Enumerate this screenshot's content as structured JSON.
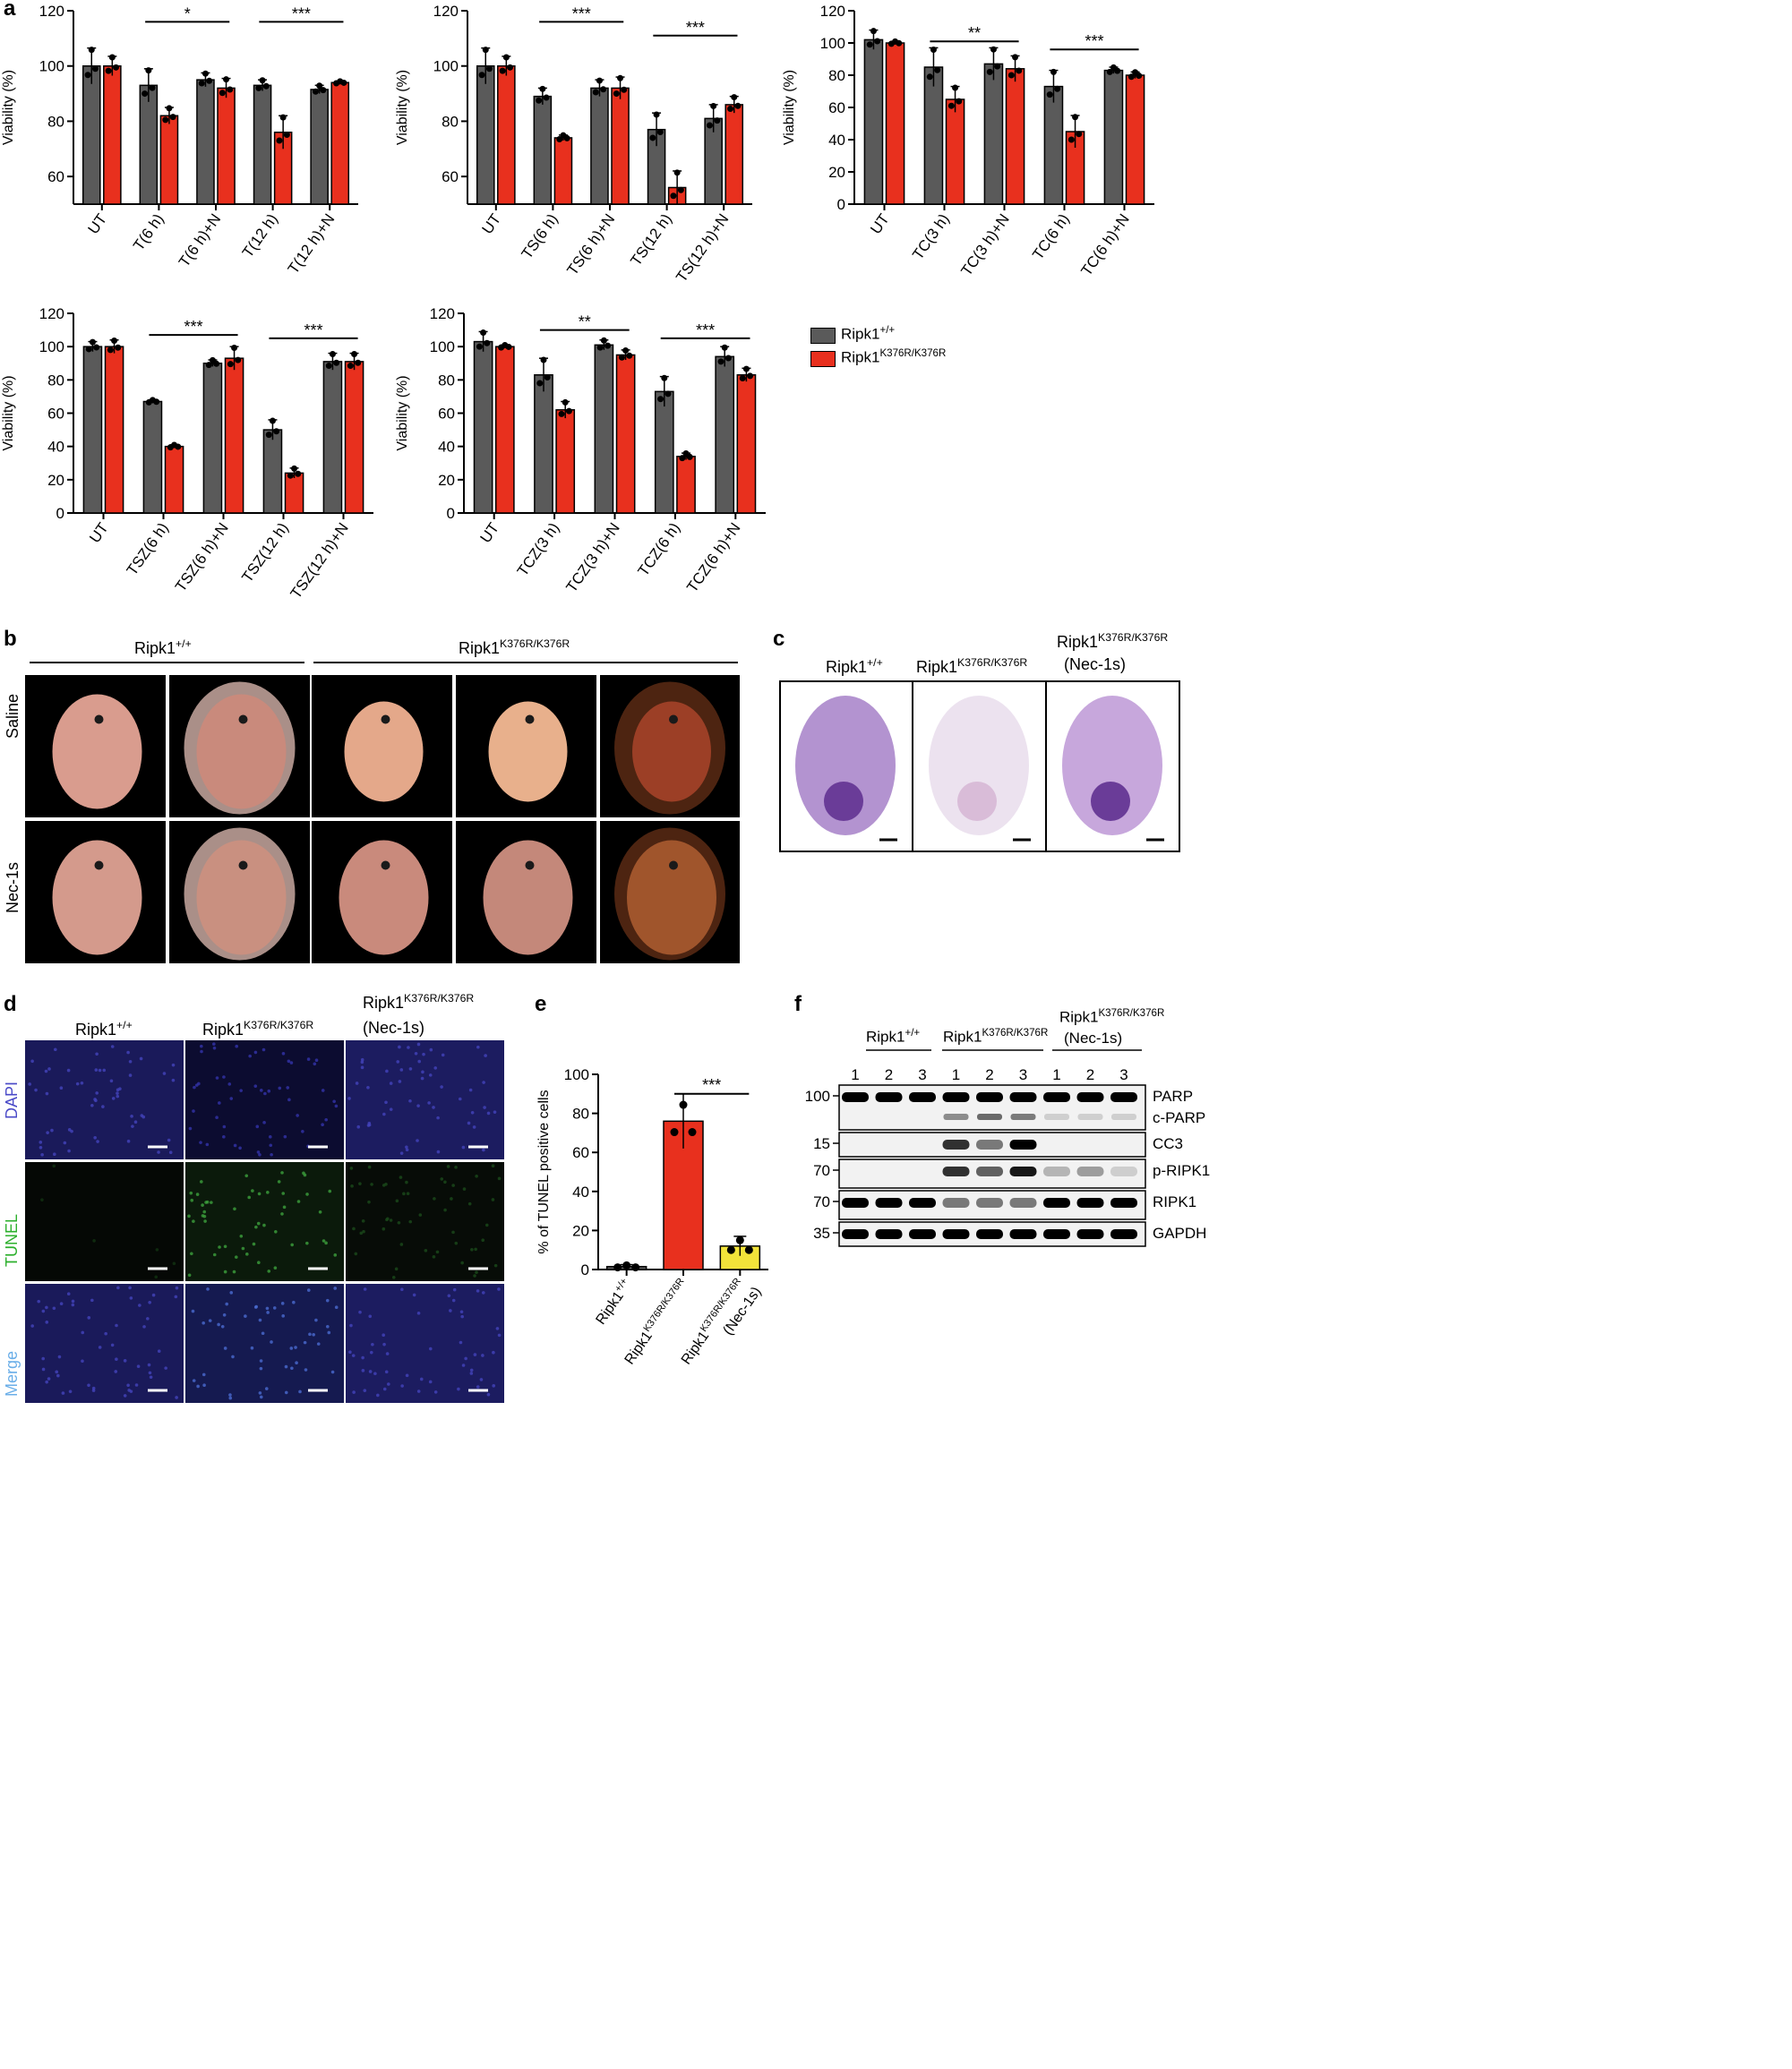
{
  "panels": {
    "a": "a",
    "b": "b",
    "c": "c",
    "d": "d",
    "e": "e",
    "f": "f"
  },
  "colors": {
    "wt": "#5a5a5a",
    "ki": "#e8301e",
    "nec": "#f2e33a"
  },
  "legend": {
    "wt_base": "Ripk1",
    "wt_sup": "+/+",
    "ki_base": "Ripk1",
    "ki_sup": "K376R/K376R"
  },
  "chart_data": [
    {
      "type": "bar",
      "ylabel": "Viability (%)",
      "ylim": [
        50,
        120
      ],
      "yticks": [
        60,
        80,
        100,
        120
      ],
      "categories": [
        "UT",
        "T(6 h)",
        "T(6 h)+N",
        "T(12 h)",
        "T(12 h)+N"
      ],
      "series": [
        {
          "name": "Ripk1+/+",
          "values": [
            100,
            93,
            95,
            93,
            91.5
          ],
          "err": [
            6.5,
            6,
            2.5,
            2,
            1.5
          ]
        },
        {
          "name": "Ripk1K376R/K376R",
          "values": [
            100,
            82,
            92,
            76,
            94
          ],
          "err": [
            3.5,
            3,
            3.5,
            6,
            0.5
          ]
        }
      ],
      "sig": [
        {
          "from": 2,
          "to": 3,
          "y": 116,
          "label": "*"
        },
        {
          "from": 4,
          "to": 5,
          "y": 116,
          "label": "***"
        }
      ]
    },
    {
      "type": "bar",
      "ylabel": "Viability (%)",
      "ylim": [
        50,
        120
      ],
      "yticks": [
        60,
        80,
        100,
        120
      ],
      "categories": [
        "UT",
        "TS(6 h)",
        "TS(6 h)+N",
        "TS(12 h)",
        "TS(12 h)+N"
      ],
      "series": [
        {
          "name": "Ripk1+/+",
          "values": [
            100,
            89,
            92,
            77,
            81
          ],
          "err": [
            6.5,
            3,
            3,
            6,
            5
          ]
        },
        {
          "name": "Ripk1K376R/K376R",
          "values": [
            100,
            74,
            92,
            56,
            86
          ],
          "err": [
            3.5,
            1,
            4,
            6,
            3
          ]
        }
      ],
      "sig": [
        {
          "from": 2,
          "to": 3,
          "y": 116,
          "label": "***"
        },
        {
          "from": 4,
          "to": 5,
          "y": 111,
          "label": "***"
        }
      ]
    },
    {
      "type": "bar",
      "ylabel": "Viability (%)",
      "ylim": [
        0,
        120
      ],
      "yticks": [
        0,
        20,
        40,
        60,
        80,
        100,
        120
      ],
      "categories": [
        "UT",
        "TC(3 h)",
        "TC(3 h)+N",
        "TC(6 h)",
        "TC(6 h)+N"
      ],
      "series": [
        {
          "name": "Ripk1+/+",
          "values": [
            102,
            85,
            87,
            73,
            83
          ],
          "err": [
            6,
            12,
            10,
            10,
            2
          ]
        },
        {
          "name": "Ripk1K376R/K376R",
          "values": [
            100,
            65,
            84,
            45,
            80
          ],
          "err": [
            1,
            8,
            8,
            10,
            2
          ]
        }
      ],
      "sig": [
        {
          "from": 2,
          "to": 3,
          "y": 101,
          "label": "**"
        },
        {
          "from": 4,
          "to": 5,
          "y": 96,
          "label": "***"
        }
      ]
    },
    {
      "type": "bar",
      "ylabel": "Viability (%)",
      "ylim": [
        0,
        120
      ],
      "yticks": [
        0,
        20,
        40,
        60,
        80,
        100,
        120
      ],
      "categories": [
        "UT",
        "TSZ(6 h)",
        "TSZ(6 h)+N",
        "TSZ(12 h)",
        "TSZ(12 h)+N"
      ],
      "series": [
        {
          "name": "Ripk1+/+",
          "values": [
            100,
            67,
            90,
            50,
            91
          ],
          "err": [
            3,
            1,
            2,
            6,
            5
          ]
        },
        {
          "name": "Ripk1K376R/K376R",
          "values": [
            100,
            40,
            93,
            24,
            91
          ],
          "err": [
            4,
            1,
            7,
            3,
            5
          ]
        }
      ],
      "sig": [
        {
          "from": 2,
          "to": 3,
          "y": 107,
          "label": "***"
        },
        {
          "from": 4,
          "to": 5,
          "y": 105,
          "label": "***"
        }
      ]
    },
    {
      "type": "bar",
      "ylabel": "Viability (%)",
      "ylim": [
        0,
        120
      ],
      "yticks": [
        0,
        20,
        40,
        60,
        80,
        100,
        120
      ],
      "categories": [
        "UT",
        "TCZ(3 h)",
        "TCZ(3 h)+N",
        "TCZ(6 h)",
        "TCZ(6 h)+N"
      ],
      "series": [
        {
          "name": "Ripk1+/+",
          "values": [
            103,
            83,
            101,
            73,
            94
          ],
          "err": [
            6,
            10,
            3,
            9,
            6
          ]
        },
        {
          "name": "Ripk1K376R/K376R",
          "values": [
            100,
            62,
            95,
            34,
            83
          ],
          "err": [
            1,
            5,
            3,
            2,
            4
          ]
        }
      ],
      "sig": [
        {
          "from": 2,
          "to": 3,
          "y": 110,
          "label": "**"
        },
        {
          "from": 4,
          "to": 5,
          "y": 105,
          "label": "***"
        }
      ]
    },
    {
      "type": "bar",
      "ylabel": "% of TUNEL positive cells",
      "ylim": [
        0,
        100
      ],
      "yticks": [
        0,
        20,
        40,
        60,
        80,
        100
      ],
      "categories": [
        "Ripk1+/+",
        "Ripk1K376R/K376R",
        "Ripk1K376R/K376R (Nec-1s)"
      ],
      "values": [
        1.5,
        76,
        12
      ],
      "err": [
        1,
        14,
        5
      ],
      "sig": [
        {
          "from": 2,
          "to": 3,
          "y": 90,
          "label": "***"
        }
      ]
    }
  ],
  "b": {
    "group_wt_base": "Ripk1",
    "group_wt_sup": "+/+",
    "group_ki_base": "Ripk1",
    "group_ki_sup": "K376R/K376R",
    "row_saline": "Saline",
    "row_nec": "Nec-1s"
  },
  "c": {
    "wt_base": "Ripk1",
    "wt_sup": "+/+",
    "ki_base": "Ripk1",
    "ki_sup": "K376R/K376R",
    "nec_base": "Ripk1",
    "nec_sup": "K376R/K376R",
    "nec_sub": "(Nec-1s)"
  },
  "d": {
    "wt_base": "Ripk1",
    "wt_sup": "+/+",
    "ki_base": "Ripk1",
    "ki_sup": "K376R/K376R",
    "nec_base": "Ripk1",
    "nec_sup": "K376R/K376R",
    "nec_sub": "(Nec-1s)",
    "row_dapi": "DAPI",
    "row_tunel": "TUNEL",
    "row_merge": "Merge"
  },
  "e": {
    "xt1_base": "Ripk1",
    "xt1_sup": "+/+",
    "xt2_base": "Ripk1",
    "xt2_sup": "K376R/K376R",
    "xt3_base": "Ripk1",
    "xt3_sup": "K376R/K376R",
    "xt3_sub": "(Nec-1s)"
  },
  "f": {
    "wt_base": "Ripk1",
    "wt_sup": "+/+",
    "ki_base": "Ripk1",
    "ki_sup": "K376R/K376R",
    "nec_base": "Ripk1",
    "nec_sup": "K376R/K376R",
    "nec_sub": "(Nec-1s)",
    "lanes": [
      "1",
      "2",
      "3",
      "1",
      "2",
      "3",
      "1",
      "2",
      "3"
    ],
    "bands": [
      {
        "mw": "100",
        "name": "PARP",
        "name2": "c-PARP",
        "intensity": [
          1,
          1,
          1,
          1,
          1,
          1,
          1,
          1,
          1
        ],
        "lower": [
          0,
          0,
          0,
          0.6,
          0.8,
          0.7,
          0.2,
          0.2,
          0.2
        ]
      },
      {
        "mw": "15",
        "name": "CC3",
        "intensity": [
          0,
          0,
          0,
          0.8,
          0.5,
          1,
          0,
          0,
          0
        ]
      },
      {
        "mw": "70",
        "name": "p-RIPK1",
        "intensity": [
          0,
          0,
          0,
          0.8,
          0.6,
          0.9,
          0.25,
          0.35,
          0.15
        ]
      },
      {
        "mw": "70",
        "name": "RIPK1",
        "intensity": [
          1,
          1,
          1,
          0.5,
          0.5,
          0.5,
          1,
          1,
          1
        ]
      },
      {
        "mw": "35",
        "name": "GAPDH",
        "intensity": [
          1,
          1,
          1,
          1,
          1,
          1,
          1,
          1,
          1
        ]
      }
    ]
  }
}
